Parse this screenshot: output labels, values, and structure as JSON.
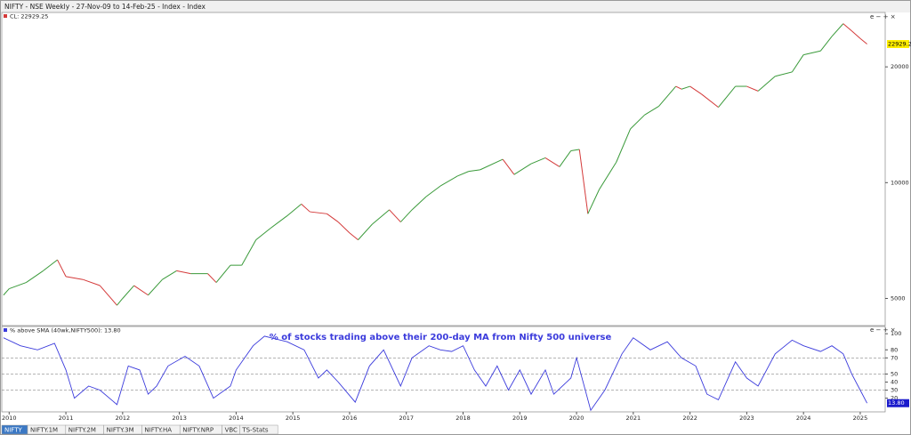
{
  "title": "NIFTY - NSE Weekly - 27-Nov-09 to 14-Feb-25 - Index - Index",
  "tabs": [
    "NIFTY",
    "NIFTY.1M",
    "NIFTY.2M",
    "NIFTY.3M",
    "NIFTY.HA",
    "NIFTY.NRP",
    "VBC",
    "TS-Stats"
  ],
  "chart_data": [
    {
      "type": "line",
      "legend_label": "CL: 22929.25",
      "last_label": "22929.2",
      "log_scale": true,
      "up_color": "#3a9a3a",
      "down_color": "#d43a3a",
      "xlim": [
        2009.87,
        2025.44
      ],
      "ylim": [
        4250,
        27700
      ],
      "yticks": [
        5000,
        10000,
        20000
      ],
      "x": [
        2009.9,
        2010.0,
        2010.3,
        2010.6,
        2010.85,
        2011.0,
        2011.3,
        2011.6,
        2011.9,
        2012.0,
        2012.2,
        2012.45,
        2012.7,
        2012.95,
        2013.2,
        2013.5,
        2013.65,
        2013.9,
        2014.1,
        2014.35,
        2014.6,
        2014.9,
        2015.15,
        2015.3,
        2015.6,
        2015.8,
        2016.0,
        2016.15,
        2016.4,
        2016.7,
        2016.9,
        2017.1,
        2017.35,
        2017.6,
        2017.9,
        2018.1,
        2018.3,
        2018.7,
        2018.9,
        2019.2,
        2019.45,
        2019.7,
        2019.9,
        2020.05,
        2020.2,
        2020.4,
        2020.7,
        2020.95,
        2021.2,
        2021.45,
        2021.75,
        2021.85,
        2022.0,
        2022.2,
        2022.5,
        2022.8,
        2023.0,
        2023.2,
        2023.5,
        2023.8,
        2024.0,
        2024.3,
        2024.5,
        2024.7,
        2024.85,
        2025.0,
        2025.12
      ],
      "values": [
        5100,
        5300,
        5500,
        5900,
        6300,
        5700,
        5600,
        5400,
        4800,
        5000,
        5400,
        5100,
        5600,
        5900,
        5800,
        5800,
        5500,
        6100,
        6100,
        7100,
        7600,
        8200,
        8800,
        8400,
        8300,
        7900,
        7400,
        7100,
        7800,
        8500,
        7900,
        8500,
        9200,
        9800,
        10400,
        10700,
        10800,
        11500,
        10500,
        11200,
        11600,
        11000,
        12100,
        12200,
        8300,
        9600,
        11300,
        13800,
        15000,
        15800,
        17800,
        17500,
        17800,
        17000,
        15700,
        17800,
        17800,
        17300,
        18900,
        19400,
        21500,
        22000,
        24000,
        25900,
        24800,
        23700,
        22929.25
      ]
    },
    {
      "type": "line",
      "legend_label": "% above SMA (40wk,NIFTY500): 13.80",
      "last_label": "13.80",
      "annotation": "% of stocks trading above their 200-day MA from Nifty 500 universe",
      "color": "#3b3bdc",
      "dashed_lines": [
        70,
        50,
        30
      ],
      "xlim": [
        2009.87,
        2025.44
      ],
      "xticks": [
        2010,
        2011,
        2012,
        2013,
        2014,
        2015,
        2016,
        2017,
        2018,
        2019,
        2020,
        2021,
        2022,
        2023,
        2024,
        2025
      ],
      "ylim": [
        3,
        109
      ],
      "yticks": [
        100,
        80,
        70,
        50,
        40,
        30,
        20
      ],
      "x": [
        2009.9,
        2010.2,
        2010.5,
        2010.8,
        2011.0,
        2011.15,
        2011.4,
        2011.6,
        2011.9,
        2012.1,
        2012.3,
        2012.45,
        2012.6,
        2012.8,
        2013.1,
        2013.35,
        2013.6,
        2013.9,
        2014.0,
        2014.3,
        2014.5,
        2014.9,
        2015.2,
        2015.45,
        2015.6,
        2015.8,
        2016.1,
        2016.35,
        2016.6,
        2016.9,
        2017.1,
        2017.4,
        2017.6,
        2017.8,
        2018.0,
        2018.2,
        2018.4,
        2018.6,
        2018.8,
        2019.0,
        2019.2,
        2019.45,
        2019.6,
        2019.9,
        2020.0,
        2020.25,
        2020.5,
        2020.8,
        2021.0,
        2021.3,
        2021.6,
        2021.85,
        2022.1,
        2022.3,
        2022.5,
        2022.8,
        2023.0,
        2023.2,
        2023.5,
        2023.8,
        2024.0,
        2024.3,
        2024.5,
        2024.7,
        2024.85,
        2025.0,
        2025.12
      ],
      "values": [
        95,
        85,
        80,
        88,
        55,
        20,
        35,
        30,
        12,
        60,
        55,
        25,
        35,
        60,
        72,
        60,
        20,
        35,
        55,
        85,
        97,
        90,
        80,
        45,
        55,
        40,
        15,
        60,
        80,
        35,
        70,
        85,
        80,
        78,
        85,
        55,
        35,
        60,
        30,
        55,
        25,
        55,
        25,
        45,
        70,
        5,
        30,
        75,
        95,
        80,
        90,
        70,
        60,
        25,
        18,
        65,
        45,
        35,
        75,
        92,
        85,
        78,
        85,
        75,
        50,
        30,
        13.8
      ]
    }
  ]
}
